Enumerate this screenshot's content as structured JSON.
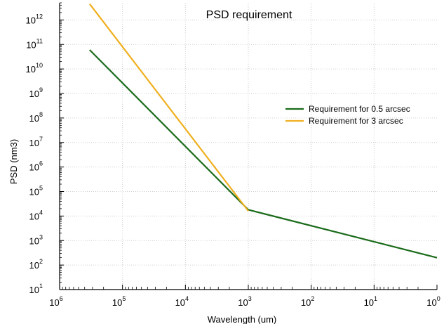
{
  "chart_data": {
    "type": "line",
    "title": "PSD requirement",
    "xlabel": "Wavelength (um)",
    "ylabel": "PSD (nm3)",
    "x_scale": "log",
    "y_scale": "log",
    "x_reversed": true,
    "xlim": [
      1000000,
      1
    ],
    "ylim": [
      10,
      5000000000000
    ],
    "x_ticks": [
      {
        "base": "10",
        "exp": "6"
      },
      {
        "base": "10",
        "exp": "5"
      },
      {
        "base": "10",
        "exp": "4"
      },
      {
        "base": "10",
        "exp": "3"
      },
      {
        "base": "10",
        "exp": "2"
      },
      {
        "base": "10",
        "exp": "1"
      },
      {
        "base": "10",
        "exp": "0"
      }
    ],
    "y_ticks": [
      {
        "base": "10",
        "exp": "1"
      },
      {
        "base": "10",
        "exp": "2"
      },
      {
        "base": "10",
        "exp": "3"
      },
      {
        "base": "10",
        "exp": "4"
      },
      {
        "base": "10",
        "exp": "5"
      },
      {
        "base": "10",
        "exp": "6"
      },
      {
        "base": "10",
        "exp": "7"
      },
      {
        "base": "10",
        "exp": "8"
      },
      {
        "base": "10",
        "exp": "9"
      },
      {
        "base": "10",
        "exp": "10"
      },
      {
        "base": "10",
        "exp": "11"
      },
      {
        "base": "10",
        "exp": "12"
      }
    ],
    "grid": true,
    "legend_position": "right",
    "series": [
      {
        "name": "Requirement for 0.5 arcsec",
        "color": "#1a6b1a",
        "x": [
          333000,
          1000,
          1
        ],
        "y": [
          60000000000,
          18000,
          200
        ]
      },
      {
        "name": "Requirement for 3 arcsec",
        "color": "#f0b020",
        "x": [
          333000,
          1000
        ],
        "y": [
          4500000000000,
          16000
        ]
      }
    ]
  }
}
